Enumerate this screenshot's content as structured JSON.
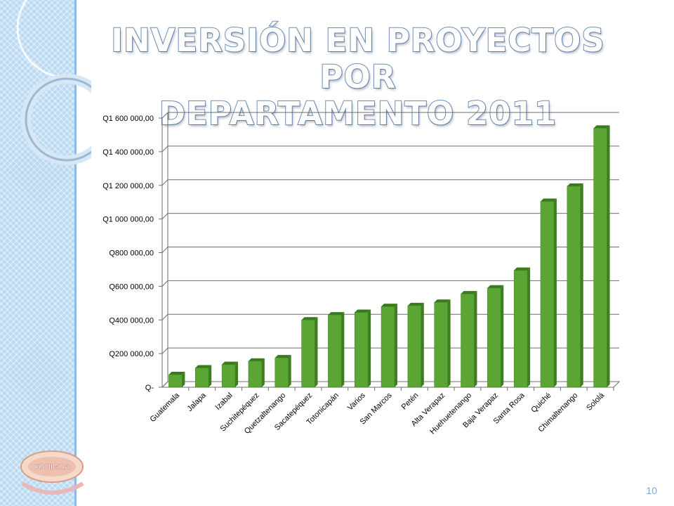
{
  "slide": {
    "title_line1": "INVERSIÓN EN PROYECTOS POR",
    "title_line2": "DEPARTAMENTO 2011",
    "page_number": "10",
    "logo_text": "FODIGUA"
  },
  "colors": {
    "bar_front": "#5aa534",
    "bar_side": "#3e7d22",
    "bar_top": "#3a7a1e",
    "grid": "#6e6e6e",
    "accent": "#b9d8f2"
  },
  "chart_data": {
    "type": "bar",
    "title": "",
    "xlabel": "",
    "ylabel": "",
    "categories": [
      "Guatemala",
      "Jalapa",
      "Izabal",
      "Suchitepéquez",
      "Quetzaltenango",
      "Sacatepéquez",
      "Totonicapán",
      "Varios",
      "San Marcos",
      "Petén",
      "Alta  Verapaz",
      "Huehuetenango",
      "Baja  Verapaz",
      "Santa Rosa",
      "Quiché",
      "Chimaltenango",
      "Sololá"
    ],
    "series": [
      {
        "values": [
          75000,
          115000,
          135000,
          155000,
          175000,
          400000,
          430000,
          445000,
          480000,
          485000,
          505000,
          555000,
          590000,
          695000,
          1105000,
          1195000,
          1540000
        ]
      }
    ],
    "ylim": [
      0,
      1600000
    ],
    "yticks": [
      0,
      200000,
      400000,
      600000,
      800000,
      1000000,
      1200000,
      1400000,
      1600000
    ],
    "ytick_labels": [
      "Q-",
      "Q200 000,00",
      "Q400 000,00",
      "Q600 000,00",
      "Q800 000,00",
      "Q1 000 000,00",
      "Q1 200 000,00",
      "Q1 400 000,00",
      "Q1 600 000,00"
    ],
    "grid": true,
    "style": "3d-column"
  }
}
